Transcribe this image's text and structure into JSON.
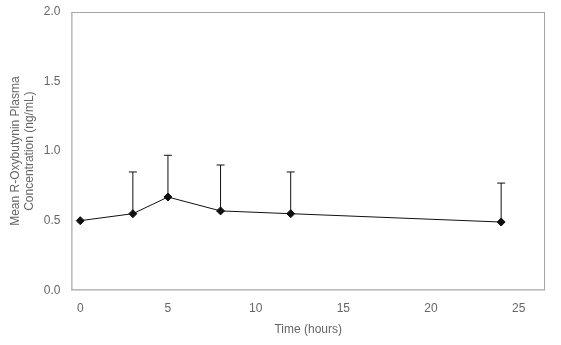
{
  "chart_data": {
    "type": "line",
    "x": [
      0,
      3,
      5,
      8,
      12,
      24
    ],
    "series": [
      {
        "color": "#111111",
        "marker": "diamond",
        "line_style": "solid",
        "values": [
          0.5,
          0.55,
          0.67,
          0.57,
          0.55,
          0.49
        ],
        "yerr_upper": [
          0.0,
          0.3,
          0.3,
          0.33,
          0.3,
          0.28
        ],
        "yerr_lower": [
          0.0,
          0.0,
          0.0,
          0.0,
          0.0,
          0.0
        ]
      }
    ],
    "xlabel": "Time (hours)",
    "ylabel": "Mean R-Oxybutynin Plasma\nConcentration (ng/mL)",
    "xlim": [
      -0.5,
      26.5
    ],
    "ylim": [
      0.0,
      2.0
    ],
    "xticks": [
      0,
      5,
      10,
      15,
      20,
      25
    ],
    "yticks": [
      {
        "value": 0.0,
        "label": "0.0"
      },
      0.5,
      {
        "value": 1.0,
        "label": "1.0"
      },
      1.5,
      {
        "value": 2.0,
        "label": "2.0"
      }
    ],
    "grid": false
  }
}
